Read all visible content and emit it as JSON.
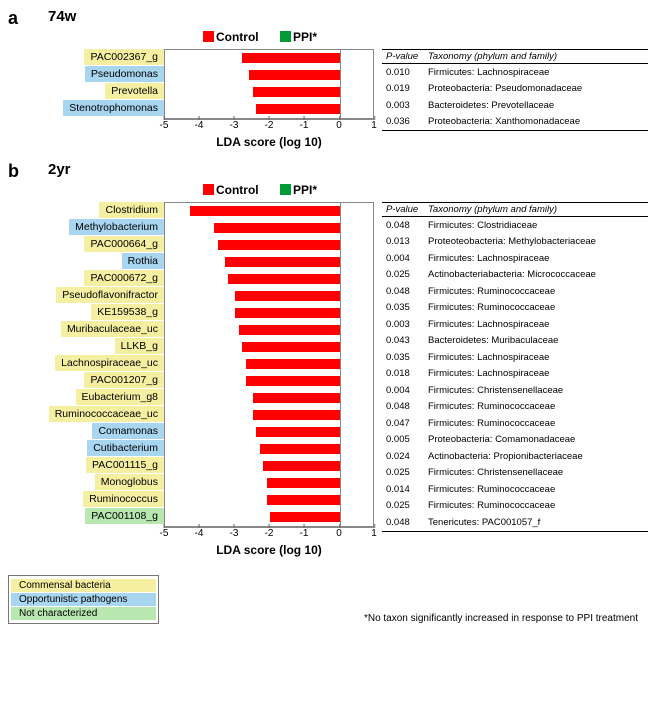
{
  "legend": {
    "control_label": "Control",
    "control_color": "#ff0000",
    "ppi_label": "PPI*",
    "ppi_color": "#009933"
  },
  "colors": {
    "commensal": "#f5f0a1",
    "opportunistic": "#a8d5f0",
    "uncharacterized": "#b8e8b0",
    "bar": "#ff0000"
  },
  "axis": {
    "min": -5,
    "max": 1,
    "ticks": [
      -5,
      -4,
      -3,
      -2,
      -1,
      0,
      1
    ],
    "label": "LDA score (log 10)"
  },
  "table_headers": {
    "pval": "P-value",
    "tax": "Taxonomy  (phylum and family)"
  },
  "panel_a": {
    "label": "a",
    "timepoint": "74w",
    "rows": [
      {
        "name": "PAC002367_g",
        "cat": "commensal",
        "start": -2.8,
        "end": 0,
        "pval": "0.010",
        "tax": "Firmicutes: Lachnospiraceae"
      },
      {
        "name": "Pseudomonas",
        "cat": "opportunistic",
        "start": -2.6,
        "end": 0,
        "pval": "0.019",
        "tax": "Proteobacteria: Pseudomonadaceae"
      },
      {
        "name": "Prevotella",
        "cat": "commensal",
        "start": -2.5,
        "end": 0,
        "pval": "0.003",
        "tax": "Bacteroidetes: Prevotellaceae"
      },
      {
        "name": "Stenotrophomonas",
        "cat": "opportunistic",
        "start": -2.4,
        "end": 0,
        "pval": "0.036",
        "tax": "Proteobacteria: Xanthomonadaceae"
      }
    ]
  },
  "panel_b": {
    "label": "b",
    "timepoint": "2yr",
    "rows": [
      {
        "name": "Clostridium",
        "cat": "commensal",
        "start": -4.3,
        "end": 0,
        "pval": "0.048",
        "tax": "Firmicutes: Clostridiaceae"
      },
      {
        "name": "Methylobacterium",
        "cat": "opportunistic",
        "start": -3.6,
        "end": 0,
        "pval": "0.013",
        "tax": "Proteoteobacteria: Methylobacteriaceae"
      },
      {
        "name": "PAC000664_g",
        "cat": "commensal",
        "start": -3.5,
        "end": 0,
        "pval": "0.004",
        "tax": "Firmicutes: Lachnospiraceae"
      },
      {
        "name": "Rothia",
        "cat": "opportunistic",
        "start": -3.3,
        "end": 0,
        "pval": "0.025",
        "tax": "Actinobacteriabacteria: Micrococcaceae"
      },
      {
        "name": "PAC000672_g",
        "cat": "commensal",
        "start": -3.2,
        "end": 0,
        "pval": "0.048",
        "tax": "Firmicutes: Ruminococcaceae"
      },
      {
        "name": "Pseudoflavonifractor",
        "cat": "commensal",
        "start": -3.0,
        "end": 0,
        "pval": "0.035",
        "tax": "Firmicutes: Ruminococcaceae"
      },
      {
        "name": "KE159538_g",
        "cat": "commensal",
        "start": -3.0,
        "end": 0,
        "pval": "0.003",
        "tax": "Firmicutes: Lachnospiraceae"
      },
      {
        "name": "Muribaculaceae_uc",
        "cat": "commensal",
        "start": -2.9,
        "end": 0,
        "pval": "0.043",
        "tax": "Bacteroidetes: Muribaculaceae"
      },
      {
        "name": "LLKB_g",
        "cat": "commensal",
        "start": -2.8,
        "end": 0,
        "pval": "0.035",
        "tax": "Firmicutes: Lachnospiraceae"
      },
      {
        "name": "Lachnospiraceae_uc",
        "cat": "commensal",
        "start": -2.7,
        "end": 0,
        "pval": "0.018",
        "tax": "Firmicutes: Lachnospiraceae"
      },
      {
        "name": "PAC001207_g",
        "cat": "commensal",
        "start": -2.7,
        "end": 0,
        "pval": "0.004",
        "tax": "Firmicutes: Christensenellaceae"
      },
      {
        "name": "Eubacterium_g8",
        "cat": "commensal",
        "start": -2.5,
        "end": 0,
        "pval": "0.048",
        "tax": "Firmicutes: Ruminococcaceae"
      },
      {
        "name": "Ruminococcaceae_uc",
        "cat": "commensal",
        "start": -2.5,
        "end": 0,
        "pval": "0.047",
        "tax": "Firmicutes: Ruminococcaceae"
      },
      {
        "name": "Comamonas",
        "cat": "opportunistic",
        "start": -2.4,
        "end": 0,
        "pval": "0.005",
        "tax": "Proteobacteria: Comamonadaceae"
      },
      {
        "name": "Cutibacterium",
        "cat": "opportunistic",
        "start": -2.3,
        "end": 0,
        "pval": "0.024",
        "tax": "Actinobacteria: Propionibacteriaceae"
      },
      {
        "name": "PAC001115_g",
        "cat": "commensal",
        "start": -2.2,
        "end": 0,
        "pval": "0.025",
        "tax": "Firmicutes: Christensenellaceae"
      },
      {
        "name": "Monoglobus",
        "cat": "commensal",
        "start": -2.1,
        "end": 0,
        "pval": "0.014",
        "tax": "Firmicutes: Ruminococcaceae"
      },
      {
        "name": "Ruminococcus",
        "cat": "commensal",
        "start": -2.1,
        "end": 0,
        "pval": "0.025",
        "tax": "Firmicutes: Ruminococcaceae"
      },
      {
        "name": "PAC001108_g",
        "cat": "uncharacterized",
        "start": -2.0,
        "end": 0,
        "pval": "0.048",
        "tax": "Tenericutes: PAC001057_f"
      }
    ]
  },
  "category_legend": [
    {
      "label": "Commensal bacteria",
      "key": "commensal"
    },
    {
      "label": "Opportunistic pathogens",
      "key": "opportunistic"
    },
    {
      "label": "Not characterized",
      "key": "uncharacterized"
    }
  ],
  "footnote": "*No taxon significantly increased in response to PPI treatment"
}
